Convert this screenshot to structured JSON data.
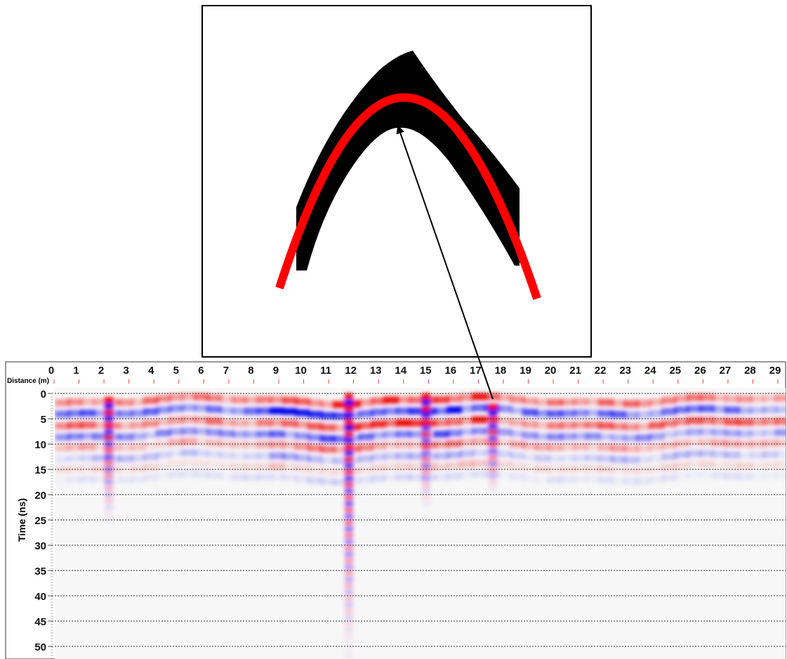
{
  "chart_data": {
    "type": "radargram",
    "xlabel": "Distance (m)",
    "ylabel": "Time (ns)",
    "xlim": [
      0,
      29.3
    ],
    "ylim": [
      0,
      52.5
    ],
    "xticks": [
      0,
      1,
      2,
      3,
      4,
      5,
      6,
      7,
      8,
      9,
      10,
      11,
      12,
      13,
      14,
      15,
      16,
      17,
      18,
      19,
      20,
      21,
      22,
      23,
      24,
      25,
      26,
      27,
      28,
      29
    ],
    "yticks": [
      0,
      5,
      10,
      15,
      20,
      25,
      30,
      35,
      40,
      45,
      50
    ],
    "grid": true
  }
}
